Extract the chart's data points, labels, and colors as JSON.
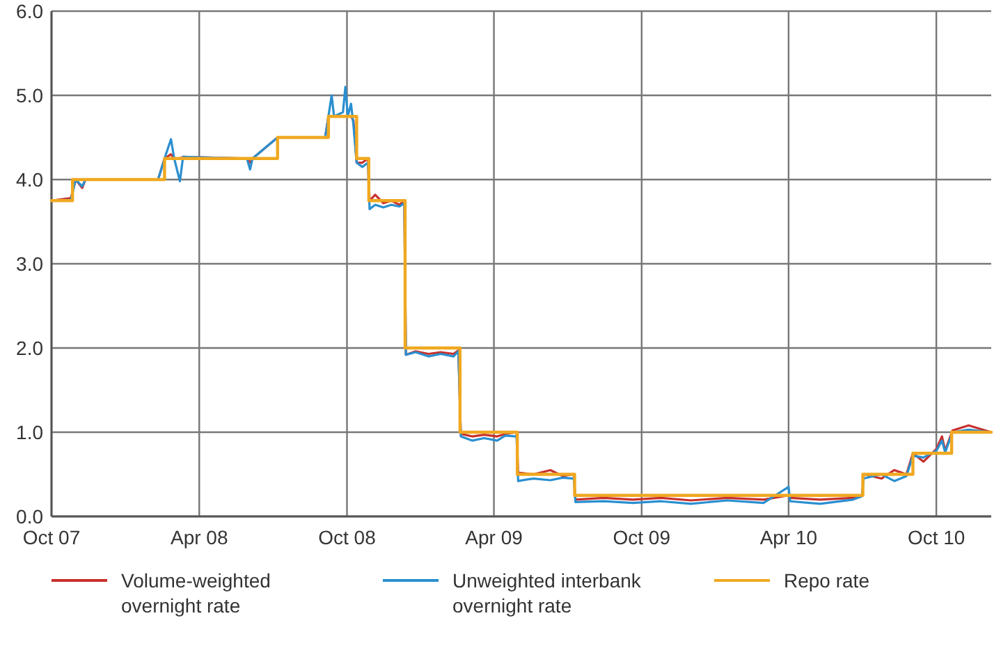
{
  "chart_data": {
    "type": "line",
    "x": [
      "2007-10-01",
      "2007-10-25",
      "2007-10-31",
      "2007-11-08",
      "2007-11-12",
      "2008-02-10",
      "2008-02-18",
      "2008-02-26",
      "2008-03-01",
      "2008-03-08",
      "2008-03-12",
      "2008-05-30",
      "2008-06-03",
      "2008-06-06",
      "2008-07-07",
      "2008-09-04",
      "2008-09-08",
      "2008-09-12",
      "2008-09-15",
      "2008-09-26",
      "2008-09-29",
      "2008-10-02",
      "2008-10-06",
      "2008-10-09",
      "2008-10-13",
      "2008-10-20",
      "2008-10-27",
      "2008-10-29",
      "2008-11-05",
      "2008-11-15",
      "2008-11-25",
      "2008-12-05",
      "2008-12-11",
      "2008-12-13",
      "2008-12-25",
      "2009-01-10",
      "2009-01-25",
      "2009-02-10",
      "2009-02-16",
      "2009-02-19",
      "2009-03-05",
      "2009-03-20",
      "2009-04-05",
      "2009-04-15",
      "2009-04-29",
      "2009-05-01",
      "2009-05-20",
      "2009-06-10",
      "2009-06-25",
      "2009-07-09",
      "2009-07-11",
      "2009-08-15",
      "2009-09-20",
      "2009-10-25",
      "2009-12-01",
      "2010-01-15",
      "2010-03-01",
      "2010-04-01",
      "2010-04-03",
      "2010-05-10",
      "2010-06-20",
      "2010-07-01",
      "2010-07-03",
      "2010-07-25",
      "2010-08-10",
      "2010-08-25",
      "2010-09-02",
      "2010-09-15",
      "2010-10-01",
      "2010-10-08",
      "2010-10-12",
      "2010-10-21",
      "2010-11-10",
      "2010-12-08"
    ],
    "series": [
      {
        "name": "Volume-weighted overnight rate",
        "color": "#c8302c",
        "values": [
          3.75,
          3.78,
          4.0,
          3.9,
          4.0,
          4.0,
          4.25,
          4.3,
          4.25,
          4.25,
          4.27,
          4.25,
          4.2,
          4.25,
          4.5,
          4.5,
          4.75,
          4.75,
          4.75,
          4.75,
          4.75,
          4.75,
          4.75,
          4.7,
          4.2,
          4.2,
          4.25,
          3.75,
          3.82,
          3.72,
          3.75,
          3.7,
          3.75,
          1.92,
          1.96,
          1.93,
          1.95,
          1.93,
          1.97,
          0.98,
          0.95,
          0.97,
          0.95,
          0.98,
          1.0,
          0.52,
          0.5,
          0.55,
          0.48,
          0.5,
          0.2,
          0.22,
          0.2,
          0.22,
          0.19,
          0.22,
          0.2,
          0.25,
          0.22,
          0.2,
          0.22,
          0.25,
          0.5,
          0.45,
          0.55,
          0.5,
          0.75,
          0.65,
          0.8,
          0.95,
          0.78,
          1.02,
          1.08,
          1.0
        ]
      },
      {
        "name": "Unweighted interbank overnight rate",
        "color": "#2a8fd0",
        "values": [
          3.75,
          3.76,
          4.0,
          3.92,
          4.0,
          4.0,
          4.25,
          4.48,
          4.25,
          3.98,
          4.27,
          4.25,
          4.12,
          4.25,
          4.5,
          4.5,
          4.75,
          5.0,
          4.75,
          4.8,
          5.1,
          4.75,
          4.9,
          4.65,
          4.2,
          4.15,
          4.2,
          3.65,
          3.7,
          3.67,
          3.7,
          3.68,
          3.72,
          1.92,
          1.95,
          1.9,
          1.93,
          1.9,
          1.96,
          0.95,
          0.9,
          0.93,
          0.9,
          0.96,
          0.95,
          0.42,
          0.45,
          0.43,
          0.46,
          0.45,
          0.17,
          0.18,
          0.16,
          0.18,
          0.15,
          0.19,
          0.16,
          0.35,
          0.18,
          0.15,
          0.2,
          0.24,
          0.45,
          0.5,
          0.42,
          0.48,
          0.72,
          0.7,
          0.78,
          0.9,
          0.76,
          1.0,
          1.03,
          1.0
        ]
      },
      {
        "name": "Repo rate",
        "type": "step",
        "color": "#f0a820",
        "x": [
          "2007-10-01",
          "2007-10-27",
          "2008-02-18",
          "2008-07-07",
          "2008-09-08",
          "2008-10-13",
          "2008-10-28",
          "2008-12-12",
          "2009-02-18",
          "2009-04-30",
          "2009-07-10",
          "2010-07-02",
          "2010-09-02",
          "2010-10-20",
          "2010-12-08"
        ],
        "values": [
          3.75,
          4.0,
          4.25,
          4.5,
          4.75,
          4.25,
          3.75,
          2.0,
          1.0,
          0.5,
          0.25,
          0.5,
          0.75,
          1.0,
          1.0
        ]
      }
    ],
    "xlim": [
      "2007-10-01",
      "2010-12-08"
    ],
    "xticks": [
      {
        "value": "2007-10-01",
        "label": "Oct 07"
      },
      {
        "value": "2008-04-01",
        "label": "Apr 08"
      },
      {
        "value": "2008-10-01",
        "label": "Oct 08"
      },
      {
        "value": "2009-04-01",
        "label": "Apr 09"
      },
      {
        "value": "2009-10-01",
        "label": "Oct 09"
      },
      {
        "value": "2010-04-01",
        "label": "Apr 10"
      },
      {
        "value": "2010-10-01",
        "label": "Oct 10"
      }
    ],
    "ylim": [
      0,
      6
    ],
    "yticks": [
      {
        "value": 0,
        "label": "0.0"
      },
      {
        "value": 1,
        "label": "1.0"
      },
      {
        "value": 2,
        "label": "2.0"
      },
      {
        "value": 3,
        "label": "3.0"
      },
      {
        "value": 4,
        "label": "4.0"
      },
      {
        "value": 5,
        "label": "5.0"
      },
      {
        "value": 6,
        "label": "6.0"
      }
    ],
    "grid": true,
    "legend": "bottom",
    "line_style": "solid",
    "marker": "none"
  }
}
